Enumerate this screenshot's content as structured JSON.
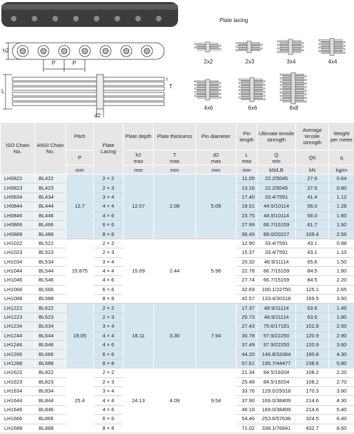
{
  "illustration": {
    "dimension_labels": {
      "h2": "h2",
      "p1": "P",
      "p2": "P",
      "l": "L",
      "t": "T",
      "d2": "d2"
    },
    "plate_lacing": {
      "title": "Plate lacing",
      "types": [
        "2x2",
        "2x3",
        "3x4",
        "4x4",
        "4x6",
        "6x6",
        "8x8"
      ]
    }
  },
  "table": {
    "columns": [
      {
        "title": "ISO Chain No."
      },
      {
        "title": "ANSI Chain No."
      },
      {
        "title": "Pitch",
        "symbol": "P",
        "unit": "mm"
      },
      {
        "title": "Plate Lacing"
      },
      {
        "title": "Plate depth",
        "symbol": "h2",
        "qualifier": "max",
        "unit": "mm"
      },
      {
        "title": "Plate thickness",
        "symbol": "T",
        "qualifier": "max",
        "unit": "mm"
      },
      {
        "title": "Pin diameter",
        "symbol": "d2",
        "qualifier": "max",
        "unit": "mm"
      },
      {
        "title": "Pin length",
        "symbol": "L",
        "qualifier": "max",
        "unit": "mm"
      },
      {
        "title": "Ultimate tensile strength",
        "symbol": "Q",
        "qualifier": "min",
        "unit": "kN/LB"
      },
      {
        "title": "Average tensile strength",
        "symbol": "Q0",
        "unit": "kN"
      },
      {
        "title": "Weight per meter",
        "symbol": "q",
        "unit": "kg/m"
      }
    ],
    "groups": [
      {
        "pitch": "12.7",
        "plate_depth": "12.07",
        "plate_thickness": "2.08",
        "pin_diameter": "5.09",
        "rows": [
          {
            "iso": "LH0822",
            "ansi": "BL422",
            "lacing": "2 × 2",
            "length": "11.05",
            "ultimate": "22.2/5045",
            "average": "27.6",
            "weight": "0.64"
          },
          {
            "iso": "LH0823",
            "ansi": "BL423",
            "lacing": "2 × 3",
            "length": "13.16",
            "ultimate": "22.2/5045",
            "average": "27.6",
            "weight": "0.80"
          },
          {
            "iso": "LH0834",
            "ansi": "BL434",
            "lacing": "3 × 4",
            "length": "17.40",
            "ultimate": "33.4/7591",
            "average": "41.4",
            "weight": "1.12"
          },
          {
            "iso": "LH0844",
            "ansi": "BL444",
            "lacing": "4 × 4",
            "length": "19.51",
            "ultimate": "44.5/10114",
            "average": "56.0",
            "weight": "1.28"
          },
          {
            "iso": "LH0846",
            "ansi": "BL446",
            "lacing": "4 × 6",
            "length": "23.75",
            "ultimate": "44.5/10114",
            "average": "56.0",
            "weight": "1.60"
          },
          {
            "iso": "LH0866",
            "ansi": "BL466",
            "lacing": "6 × 6",
            "length": "27.99",
            "ultimate": "66.7/15159",
            "average": "81.7",
            "weight": "1.92"
          },
          {
            "iso": "LH0888",
            "ansi": "BL488",
            "lacing": "8 × 8",
            "length": "36.45",
            "ultimate": "89.0/20227",
            "average": "109.4",
            "weight": "2.56"
          }
        ]
      },
      {
        "pitch": "15.875",
        "plate_depth": "15.09",
        "plate_thickness": "2.44",
        "pin_diameter": "5.96",
        "rows": [
          {
            "iso": "LH1022",
            "ansi": "BL522",
            "lacing": "2 × 2",
            "length": "12.90",
            "ultimate": "33.4/7591",
            "average": "43.1",
            "weight": "0.88"
          },
          {
            "iso": "LH1023",
            "ansi": "BL523",
            "lacing": "2 × 3",
            "length": "15.37",
            "ultimate": "33.4/7591",
            "average": "43.1",
            "weight": "1.10"
          },
          {
            "iso": "LH1034",
            "ansi": "BL534",
            "lacing": "3 × 4",
            "length": "20.32",
            "ultimate": "48.9/11114",
            "average": "65.6",
            "weight": "1.50"
          },
          {
            "iso": "LH1044",
            "ansi": "BL544",
            "lacing": "4 × 4",
            "length": "22.78",
            "ultimate": "66.7/15159",
            "average": "84.5",
            "weight": "1.80"
          },
          {
            "iso": "LH1046",
            "ansi": "BL546",
            "lacing": "4 × 6",
            "length": "27.74",
            "ultimate": "66.7/15159",
            "average": "84.5",
            "weight": "2.20"
          },
          {
            "iso": "LH1066",
            "ansi": "BL566",
            "lacing": "6 × 6",
            "length": "32.69",
            "ultimate": "100.1/22750",
            "average": "125.1",
            "weight": "2.65"
          },
          {
            "iso": "LH1088",
            "ansi": "BL588",
            "lacing": "8 × 8",
            "length": "42.57",
            "ultimate": "133.4/30318",
            "average": "169.5",
            "weight": "3.50"
          }
        ]
      },
      {
        "pitch": "19.05",
        "plate_depth": "18.11",
        "plate_thickness": "3.30",
        "pin_diameter": "7.94",
        "rows": [
          {
            "iso": "LH1222",
            "ansi": "BL622",
            "lacing": "2 × 2",
            "length": "17.37",
            "ultimate": "48.9/11114",
            "average": "63.6",
            "weight": "1.45"
          },
          {
            "iso": "LH1223",
            "ansi": "BL623",
            "lacing": "2 × 3",
            "length": "20.73",
            "ultimate": "48.9/11114",
            "average": "63.6",
            "weight": "1.80"
          },
          {
            "iso": "LH1234",
            "ansi": "BL634",
            "lacing": "3 × 4",
            "length": "27.43",
            "ultimate": "75.6/17181",
            "average": "102.8",
            "weight": "2.50"
          },
          {
            "iso": "LH1244",
            "ansi": "BL644",
            "lacing": "4 × 4",
            "length": "30.78",
            "ultimate": "97.9/22250",
            "average": "120.9",
            "weight": "2.90"
          },
          {
            "iso": "LH1246",
            "ansi": "BL646",
            "lacing": "4 × 6",
            "length": "37.49",
            "ultimate": "97.9/22250",
            "average": "120.9",
            "weight": "3.60"
          },
          {
            "iso": "LH1266",
            "ansi": "BL666",
            "lacing": "6 × 6",
            "length": "44.20",
            "ultimate": "146.8/33364",
            "average": "190.8",
            "weight": "4.30"
          },
          {
            "iso": "LH1288",
            "ansi": "BL688",
            "lacing": "8 × 8",
            "length": "57.61",
            "ultimate": "195.7/44477",
            "average": "238.8",
            "weight": "5.80"
          }
        ]
      },
      {
        "pitch": "25.4",
        "plate_depth": "24.13",
        "plate_thickness": "4.09",
        "pin_diameter": "9.54",
        "rows": [
          {
            "iso": "LH1622",
            "ansi": "BL822",
            "lacing": "2 × 2",
            "length": "21.34",
            "ultimate": "84.5/19204",
            "average": "108.2",
            "weight": "2.20"
          },
          {
            "iso": "LH1623",
            "ansi": "BL823",
            "lacing": "2 × 3",
            "length": "25.48",
            "ultimate": "84.5/19204",
            "average": "108.2",
            "weight": "2.70"
          },
          {
            "iso": "LH1634",
            "ansi": "BL834",
            "lacing": "3 × 4",
            "length": "33.76",
            "ultimate": "129.0/29318",
            "average": "170.3",
            "weight": "3.80"
          },
          {
            "iso": "LH1644",
            "ansi": "BL844",
            "lacing": "4 × 4",
            "length": "37.90",
            "ultimate": "169.0/38409",
            "average": "214.6",
            "weight": "4.30"
          },
          {
            "iso": "LH1646",
            "ansi": "BL846",
            "lacing": "4 × 6",
            "length": "46.18",
            "ultimate": "169.0/38409",
            "average": "214.6",
            "weight": "5.40"
          },
          {
            "iso": "LH1666",
            "ansi": "BL866",
            "lacing": "6 × 6",
            "length": "54.46",
            "ultimate": "253.6/57636",
            "average": "324.5",
            "weight": "6.40"
          },
          {
            "iso": "LH1688",
            "ansi": "BL888",
            "lacing": "8 × 8",
            "length": "71.02",
            "ultimate": "338.1/76841",
            "average": "432.7",
            "weight": "8.60"
          }
        ]
      }
    ]
  }
}
